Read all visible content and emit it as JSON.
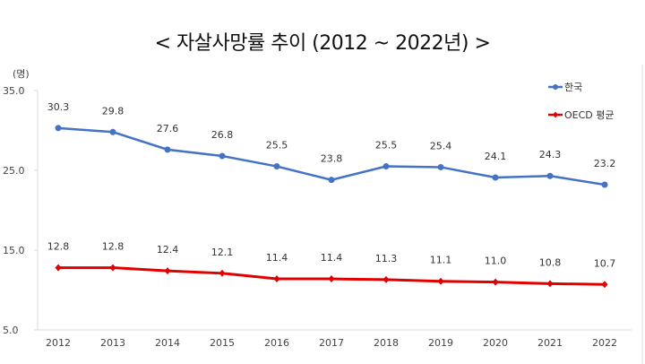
{
  "chart_data": {
    "type": "line",
    "title": "< 자살사망률 추이 (2012 ~ 2022년) >",
    "ylabel": "(명)",
    "xlabel": "",
    "categories": [
      "2012",
      "2013",
      "2014",
      "2015",
      "2016",
      "2017",
      "2018",
      "2019",
      "2020",
      "2021",
      "2022"
    ],
    "ylim": [
      5.0,
      35.0
    ],
    "yticks": [
      "5.0",
      "15.0",
      "25.0",
      "35.0"
    ],
    "grid": false,
    "legend": "top-right",
    "series": [
      {
        "name": "한국",
        "color": "#4472C4",
        "marker": "circle",
        "values": [
          30.3,
          29.8,
          27.6,
          26.8,
          25.5,
          23.8,
          25.5,
          25.4,
          24.1,
          24.3,
          23.2
        ]
      },
      {
        "name": "OECD 평균",
        "color": "#E00000",
        "marker": "diamond",
        "values": [
          12.8,
          12.8,
          12.4,
          12.1,
          11.4,
          11.4,
          11.3,
          11.1,
          11.0,
          10.8,
          10.7
        ]
      }
    ]
  }
}
